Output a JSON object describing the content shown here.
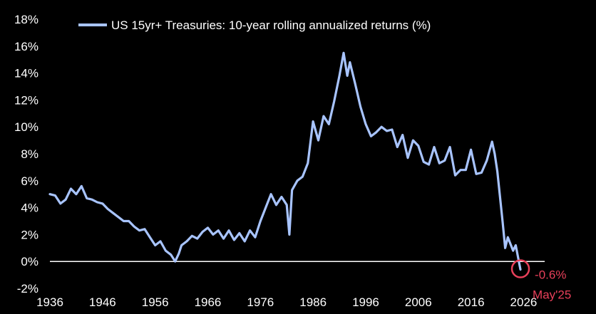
{
  "colors": {
    "background": "#000000",
    "series": "#a8c4ff",
    "zero_line": "#ffffff",
    "annotation": "#e8405a",
    "text": "#ffffff"
  },
  "chart_data": {
    "type": "line",
    "title": "",
    "xlabel": "",
    "ylabel": "",
    "grid": false,
    "legend_position": "top-left",
    "xlim": [
      1936,
      2030
    ],
    "ylim": [
      -2,
      18
    ],
    "x_ticks": [
      "1936",
      "1946",
      "1956",
      "1966",
      "1976",
      "1986",
      "1996",
      "2006",
      "2016",
      "2026"
    ],
    "y_ticks": [
      "18%",
      "16%",
      "14%",
      "12%",
      "10%",
      "8%",
      "6%",
      "4%",
      "2%",
      "0%",
      "-2%"
    ],
    "series": [
      {
        "name": "US 15yr+ Treasuries: 10-year rolling annualized returns (%)",
        "x": [
          1936,
          1937,
          1938,
          1939,
          1940,
          1941,
          1942,
          1943,
          1944,
          1945,
          1946,
          1947,
          1948,
          1949,
          1950,
          1951,
          1952,
          1953,
          1954,
          1955,
          1956,
          1957,
          1958,
          1959,
          1959.8,
          1960.5,
          1961,
          1962,
          1963,
          1964,
          1965,
          1966,
          1967,
          1968,
          1969,
          1970,
          1971,
          1972,
          1973,
          1974,
          1975,
          1976,
          1977,
          1978,
          1979,
          1980,
          1981,
          1981.5,
          1982,
          1983,
          1984,
          1985,
          1986,
          1987,
          1988,
          1989,
          1990,
          1991,
          1991.8,
          1992.5,
          1993,
          1994,
          1995,
          1996,
          1997,
          1998,
          1999,
          2000,
          2001,
          2002,
          2003,
          2004,
          2005,
          2006,
          2007,
          2008,
          2009,
          2010,
          2011,
          2012,
          2013,
          2014,
          2015,
          2016,
          2017,
          2018,
          2019,
          2020,
          2020.5,
          2021,
          2022,
          2022.5,
          2023,
          2024,
          2024.5,
          2025.4
        ],
        "values": [
          5.0,
          4.9,
          4.3,
          4.6,
          5.4,
          5.0,
          5.6,
          4.7,
          4.6,
          4.4,
          4.3,
          3.9,
          3.6,
          3.3,
          3.0,
          3.0,
          2.6,
          2.3,
          2.4,
          1.8,
          1.2,
          1.5,
          0.8,
          0.5,
          0.0,
          0.6,
          1.2,
          1.5,
          1.9,
          1.7,
          2.2,
          2.5,
          2.0,
          2.3,
          1.7,
          2.3,
          1.6,
          2.1,
          1.5,
          2.3,
          1.8,
          3.0,
          4.0,
          5.0,
          4.2,
          4.8,
          4.2,
          2.0,
          5.3,
          6.0,
          6.3,
          7.3,
          10.4,
          9.0,
          10.8,
          10.2,
          11.9,
          13.8,
          15.5,
          13.8,
          14.8,
          13.2,
          11.5,
          10.2,
          9.3,
          9.6,
          10.0,
          9.7,
          9.8,
          8.5,
          9.4,
          7.7,
          9.0,
          8.6,
          7.4,
          7.2,
          8.5,
          7.3,
          7.5,
          8.5,
          6.4,
          6.8,
          6.8,
          8.3,
          6.5,
          6.6,
          7.5,
          8.9,
          8.0,
          6.7,
          3.0,
          1.0,
          1.8,
          0.8,
          1.2,
          -0.6
        ]
      }
    ],
    "annotations": [
      {
        "x": 2025.4,
        "y": -0.6,
        "label": "-0.6%",
        "sublabel": "May'25"
      }
    ]
  }
}
